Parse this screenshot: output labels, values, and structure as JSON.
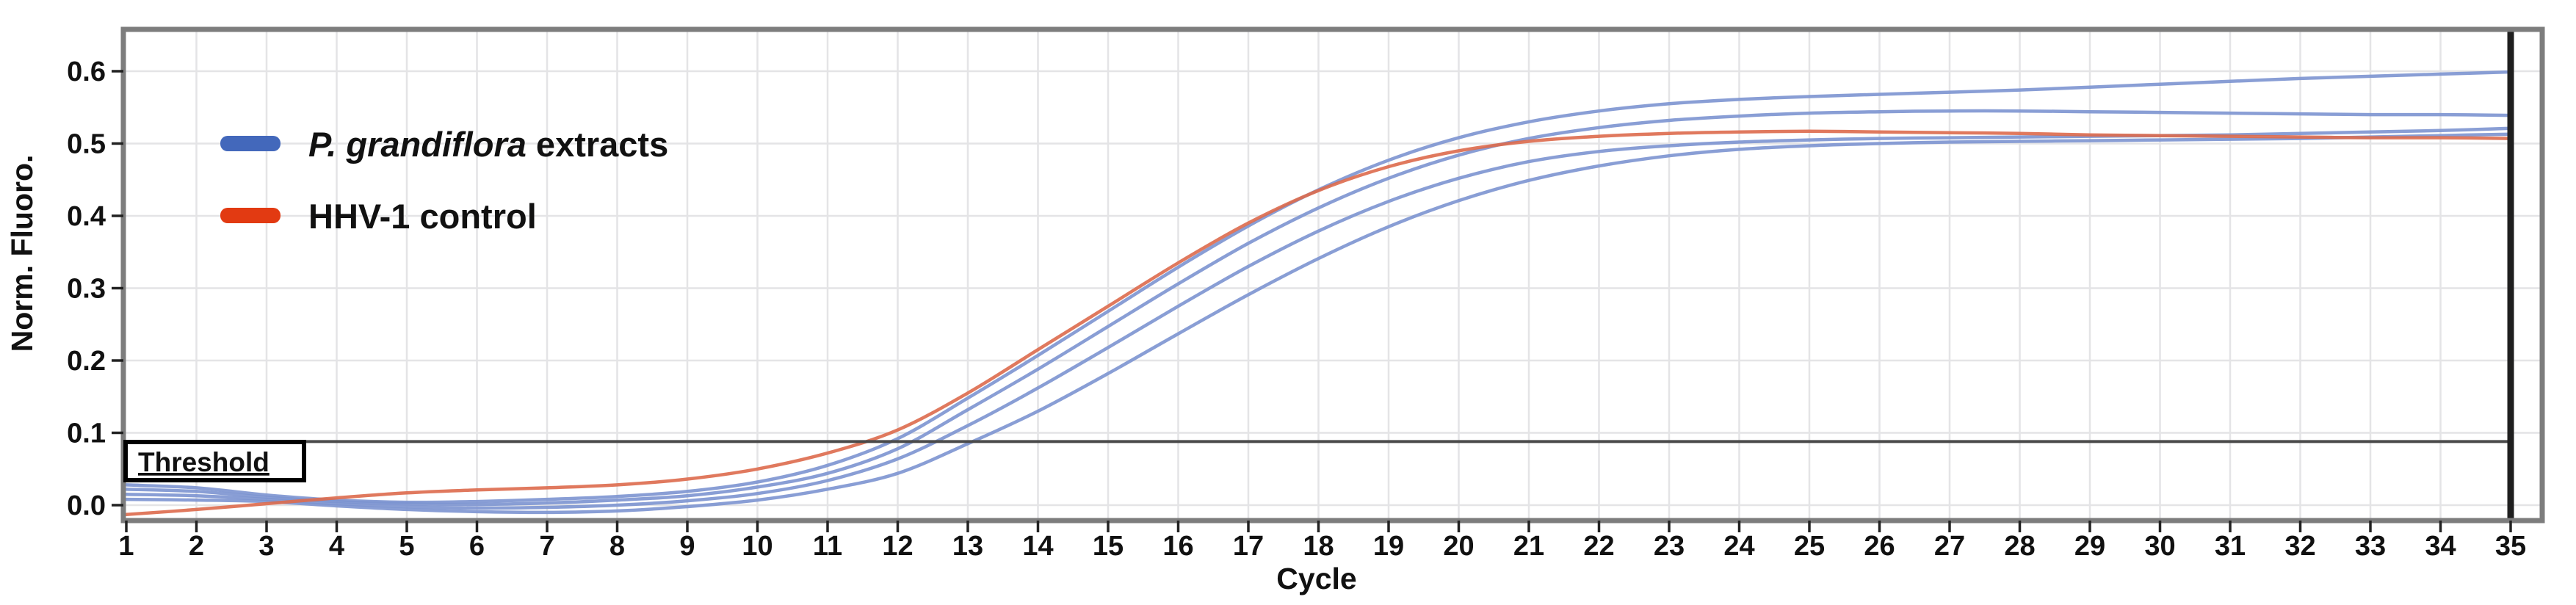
{
  "figure": {
    "description": "qPCR amplification plot, normalized fluorescence versus cycle number",
    "background_color": "#ffffff",
    "plot_border_color": "#7d7d7d",
    "gridline_color": "#e4e4e6",
    "cursor_line_color": "#1f1f1f",
    "cursor_line_cycle": 35
  },
  "axes": {
    "y": {
      "title": "Norm. Fluoro.",
      "tick_labels": [
        "0.0",
        "0.1",
        "0.2",
        "0.3",
        "0.4",
        "0.5",
        "0.6"
      ],
      "tick_values": [
        0.0,
        0.1,
        0.2,
        0.3,
        0.4,
        0.5,
        0.6
      ]
    },
    "x": {
      "title": "Cycle",
      "tick_values": [
        1,
        2,
        3,
        4,
        5,
        6,
        7,
        8,
        9,
        10,
        11,
        12,
        13,
        14,
        15,
        16,
        17,
        18,
        19,
        20,
        21,
        22,
        23,
        24,
        25,
        26,
        27,
        28,
        29,
        30,
        31,
        32,
        33,
        34,
        35
      ]
    }
  },
  "legend": {
    "items": [
      {
        "swatch_color": "#4368bb",
        "label_italic": "P. grandiflora",
        "label_rest": " extracts"
      },
      {
        "swatch_color": "#e23a12",
        "label": "HHV-1 control"
      }
    ]
  },
  "threshold": {
    "label": "Threshold",
    "value_approx": 0.088,
    "line_color": "#4a4a4a",
    "box_border_color": "#000000"
  },
  "chart_data": {
    "type": "line",
    "title": "",
    "xlabel": "Cycle",
    "ylabel": "Norm. Fluoro.",
    "xlim": [
      1,
      35
    ],
    "ylim": [
      -0.02,
      0.66
    ],
    "grid": true,
    "legend_position": "upper-left-inside",
    "threshold_line": 0.088,
    "x": [
      1,
      2,
      3,
      4,
      5,
      6,
      7,
      8,
      9,
      10,
      11,
      12,
      13,
      14,
      15,
      16,
      17,
      18,
      19,
      20,
      21,
      22,
      23,
      24,
      25,
      26,
      27,
      28,
      29,
      30,
      31,
      32,
      33,
      34,
      35
    ],
    "series": [
      {
        "name": "P. grandiflora extracts - curve 1",
        "group": "P. grandiflora extracts",
        "color": "#7c94d0",
        "ct_approx": 11.8,
        "values": [
          0.028,
          0.024,
          0.014,
          0.007,
          0.004,
          0.005,
          0.008,
          0.012,
          0.019,
          0.032,
          0.055,
          0.092,
          0.148,
          0.207,
          0.268,
          0.329,
          0.386,
          0.436,
          0.477,
          0.508,
          0.53,
          0.545,
          0.555,
          0.561,
          0.565,
          0.568,
          0.571,
          0.574,
          0.578,
          0.582,
          0.586,
          0.59,
          0.593,
          0.596,
          0.599
        ]
      },
      {
        "name": "P. grandiflora extracts - curve 2",
        "group": "P. grandiflora extracts",
        "color": "#7c94d0",
        "ct_approx": 12.1,
        "values": [
          0.022,
          0.019,
          0.011,
          0.005,
          0.002,
          0.001,
          0.003,
          0.007,
          0.013,
          0.025,
          0.044,
          0.078,
          0.132,
          0.188,
          0.247,
          0.306,
          0.362,
          0.411,
          0.452,
          0.484,
          0.507,
          0.522,
          0.532,
          0.538,
          0.542,
          0.544,
          0.545,
          0.545,
          0.544,
          0.543,
          0.542,
          0.541,
          0.54,
          0.54,
          0.539
        ]
      },
      {
        "name": "P. grandiflora extracts - curve 3",
        "group": "P. grandiflora extracts",
        "color": "#7c94d0",
        "ct_approx": 12.45,
        "values": [
          0.015,
          0.013,
          0.008,
          0.002,
          -0.002,
          -0.004,
          -0.003,
          0.0,
          0.006,
          0.016,
          0.034,
          0.064,
          0.11,
          0.162,
          0.218,
          0.275,
          0.33,
          0.379,
          0.42,
          0.452,
          0.475,
          0.489,
          0.497,
          0.502,
          0.505,
          0.507,
          0.508,
          0.509,
          0.51,
          0.511,
          0.512,
          0.514,
          0.516,
          0.518,
          0.521
        ]
      },
      {
        "name": "P. grandiflora extracts - curve 4",
        "group": "P. grandiflora extracts",
        "color": "#7c94d0",
        "ct_approx": 12.95,
        "values": [
          0.008,
          0.007,
          0.005,
          -0.001,
          -0.006,
          -0.009,
          -0.01,
          -0.008,
          -0.002,
          0.007,
          0.022,
          0.044,
          0.085,
          0.13,
          0.182,
          0.237,
          0.291,
          0.341,
          0.385,
          0.421,
          0.449,
          0.469,
          0.483,
          0.492,
          0.497,
          0.5,
          0.502,
          0.503,
          0.504,
          0.505,
          0.506,
          0.507,
          0.509,
          0.511,
          0.513
        ]
      },
      {
        "name": "HHV-1 control",
        "group": "HHV-1 control",
        "color": "#dd6a4c",
        "ct_approx": 11.4,
        "values": [
          -0.013,
          -0.006,
          0.002,
          0.01,
          0.017,
          0.021,
          0.024,
          0.028,
          0.036,
          0.05,
          0.072,
          0.104,
          0.155,
          0.215,
          0.275,
          0.335,
          0.39,
          0.435,
          0.468,
          0.49,
          0.503,
          0.51,
          0.514,
          0.516,
          0.517,
          0.516,
          0.515,
          0.514,
          0.512,
          0.511,
          0.51,
          0.509,
          0.508,
          0.508,
          0.507
        ]
      }
    ]
  }
}
